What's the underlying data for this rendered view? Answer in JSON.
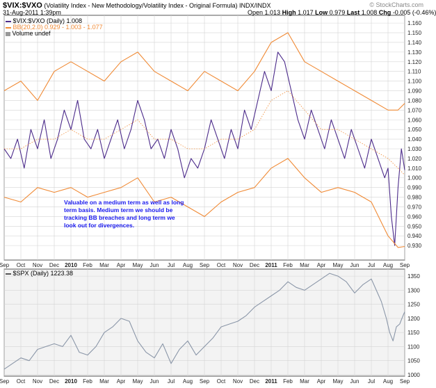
{
  "header": {
    "symbol": "$VIX:$VXO",
    "description": "(Volatility Index - New Methodology/Volatility Index - Original Formula)",
    "exchange": "INDX/INDX",
    "date": "31-Aug-2011 1:39pm",
    "watermark": "© StockCharts.com",
    "open_label": "Open",
    "open": "1.013",
    "high_label": "High",
    "high": "1.017",
    "low_label": "Low",
    "low": "0.979",
    "last_label": "Last",
    "last": "1.008",
    "chg_label": "Chg",
    "chg": "-0.005 (-0.46%)"
  },
  "legend": {
    "ratio": "$VIX:$VXO (Daily) 1.008",
    "bb": "BB(20,2.0) 0.929 - 1.003 - 1.077",
    "volume": "Volume undef"
  },
  "annotation": "Valuable on a medium term as well as long term basis. Medium term we should be tracking BB breaches and long term we look out for divergences.",
  "colors": {
    "ratio": "#4b2a8a",
    "bands": "#f08a35",
    "spx": "#8a96a8",
    "panel_bg": "#f3f3f3",
    "grid": "#d4d4d4",
    "annotation": "#1a1aee"
  },
  "chart_data": [
    {
      "type": "line",
      "title": "$VIX:$VXO (Daily) with Bollinger Bands BB(20,2.0)",
      "ylim": [
        0.915,
        1.168
      ],
      "y_ticks": [
        "0.930",
        "0.940",
        "0.950",
        "0.960",
        "0.970",
        "0.980",
        "0.990",
        "1.000",
        "1.010",
        "1.020",
        "1.030",
        "1.040",
        "1.050",
        "1.060",
        "1.070",
        "1.080",
        "1.090",
        "1.100",
        "1.110",
        "1.120",
        "1.130",
        "1.140",
        "1.150",
        "1.160"
      ],
      "x_labels": [
        "Sep",
        "Oct",
        "Nov",
        "Dec",
        "2010",
        "Feb",
        "Mar",
        "Apr",
        "May",
        "Jun",
        "Jul",
        "Aug",
        "Sep",
        "Oct",
        "Nov",
        "Dec",
        "2011",
        "Feb",
        "Mar",
        "Apr",
        "May",
        "Jun",
        "Jul",
        "Aug",
        "Sep"
      ],
      "x_months": [
        0,
        1,
        2,
        3,
        4,
        5,
        6,
        7,
        8,
        9,
        10,
        11,
        12,
        13,
        14,
        15,
        16,
        17,
        18,
        19,
        20,
        21,
        22,
        23,
        24
      ],
      "x_month_max": 24.0,
      "series": [
        {
          "name": "$VIX:$VXO",
          "x": [
            0,
            0.4,
            0.8,
            1.2,
            1.6,
            2,
            2.4,
            2.8,
            3.2,
            3.6,
            4,
            4.4,
            4.8,
            5.2,
            5.6,
            6,
            6.4,
            6.8,
            7.2,
            7.6,
            8,
            8.4,
            8.8,
            9.2,
            9.6,
            10,
            10.4,
            10.8,
            11.2,
            11.6,
            12,
            12.4,
            12.8,
            13.2,
            13.6,
            14,
            14.4,
            14.8,
            15.2,
            15.6,
            16,
            16.4,
            16.8,
            17.2,
            17.6,
            18,
            18.4,
            18.8,
            19.2,
            19.6,
            20,
            20.4,
            20.8,
            21.2,
            21.6,
            22,
            22.4,
            22.8,
            23.0,
            23.2,
            23.4,
            23.6,
            23.8,
            24.0
          ],
          "values": [
            1.03,
            1.02,
            1.04,
            1.01,
            1.05,
            1.03,
            1.06,
            1.02,
            1.04,
            1.07,
            1.05,
            1.08,
            1.04,
            1.03,
            1.05,
            1.02,
            1.04,
            1.06,
            1.03,
            1.05,
            1.08,
            1.06,
            1.03,
            1.04,
            1.02,
            1.05,
            1.03,
            1.0,
            1.02,
            1.01,
            1.03,
            1.06,
            1.04,
            1.02,
            1.05,
            1.03,
            1.07,
            1.05,
            1.08,
            1.11,
            1.09,
            1.13,
            1.12,
            1.09,
            1.06,
            1.04,
            1.07,
            1.05,
            1.03,
            1.06,
            1.04,
            1.02,
            1.05,
            1.03,
            1.01,
            1.04,
            1.02,
            1.0,
            1.01,
            0.96,
            0.93,
            0.99,
            1.03,
            1.008
          ]
        },
        {
          "name": "BB Upper",
          "x": [
            0,
            1,
            2,
            3,
            4,
            5,
            6,
            7,
            8,
            9,
            10,
            11,
            12,
            13,
            14,
            15,
            16,
            17,
            18,
            19,
            20,
            21,
            22,
            23,
            23.6,
            24.0
          ],
          "values": [
            1.09,
            1.1,
            1.08,
            1.11,
            1.12,
            1.11,
            1.1,
            1.12,
            1.13,
            1.11,
            1.1,
            1.09,
            1.11,
            1.1,
            1.09,
            1.11,
            1.14,
            1.15,
            1.12,
            1.11,
            1.1,
            1.09,
            1.08,
            1.07,
            1.07,
            1.077
          ]
        },
        {
          "name": "BB Middle",
          "x": [
            0,
            1,
            2,
            3,
            4,
            5,
            6,
            7,
            8,
            9,
            10,
            11,
            12,
            13,
            14,
            15,
            16,
            17,
            18,
            19,
            20,
            21,
            22,
            23,
            23.6,
            24.0
          ],
          "values": [
            1.03,
            1.03,
            1.04,
            1.04,
            1.05,
            1.04,
            1.04,
            1.05,
            1.06,
            1.04,
            1.04,
            1.03,
            1.03,
            1.04,
            1.04,
            1.05,
            1.08,
            1.09,
            1.07,
            1.05,
            1.05,
            1.04,
            1.03,
            1.02,
            1.01,
            1.003
          ]
        },
        {
          "name": "BB Lower",
          "x": [
            0,
            1,
            2,
            3,
            4,
            5,
            6,
            7,
            8,
            9,
            10,
            11,
            12,
            13,
            14,
            15,
            16,
            17,
            18,
            19,
            20,
            21,
            22,
            23,
            23.6,
            24.0
          ],
          "values": [
            0.98,
            0.975,
            0.99,
            0.985,
            0.99,
            0.98,
            0.985,
            0.99,
            1.0,
            0.975,
            0.98,
            0.97,
            0.96,
            0.975,
            0.985,
            0.99,
            1.01,
            1.02,
            1.0,
            0.985,
            0.99,
            0.985,
            0.975,
            0.94,
            0.928,
            0.929
          ]
        }
      ]
    },
    {
      "type": "line",
      "title": "$SPX (Daily) 1223.38",
      "ylim": [
        995,
        1375
      ],
      "y_ticks": [
        "1000",
        "1050",
        "1100",
        "1150",
        "1200",
        "1250",
        "1300",
        "1350"
      ],
      "x_labels": [
        "Sep",
        "Oct",
        "Nov",
        "Dec",
        "2010",
        "Feb",
        "Mar",
        "Apr",
        "May",
        "Jun",
        "Jul",
        "Aug",
        "Sep",
        "Oct",
        "Nov",
        "Dec",
        "2011",
        "Feb",
        "Mar",
        "Apr",
        "May",
        "Jun",
        "Jul",
        "Aug",
        "Sep"
      ],
      "x_months": [
        0,
        1,
        2,
        3,
        4,
        5,
        6,
        7,
        8,
        9,
        10,
        11,
        12,
        13,
        14,
        15,
        16,
        17,
        18,
        19,
        20,
        21,
        22,
        23,
        24
      ],
      "x_month_max": 24.0,
      "series": [
        {
          "name": "$SPX",
          "x": [
            0,
            0.5,
            1,
            1.5,
            2,
            2.5,
            3,
            3.5,
            4,
            4.5,
            5,
            5.5,
            6,
            6.5,
            7,
            7.5,
            8,
            8.5,
            9,
            9.5,
            10,
            10.5,
            11,
            11.5,
            12,
            12.5,
            13,
            13.5,
            14,
            14.5,
            15,
            15.5,
            16,
            16.5,
            17,
            17.5,
            18,
            18.5,
            19,
            19.5,
            20,
            20.5,
            21,
            21.5,
            22,
            22.3,
            22.6,
            22.9,
            23.1,
            23.3,
            23.5,
            23.7,
            23.9,
            24.0
          ],
          "values": [
            1020,
            1040,
            1060,
            1050,
            1090,
            1100,
            1110,
            1100,
            1140,
            1080,
            1070,
            1100,
            1150,
            1170,
            1200,
            1190,
            1120,
            1080,
            1060,
            1110,
            1040,
            1090,
            1120,
            1070,
            1100,
            1130,
            1170,
            1180,
            1190,
            1210,
            1240,
            1260,
            1280,
            1300,
            1330,
            1310,
            1300,
            1320,
            1340,
            1360,
            1350,
            1330,
            1290,
            1320,
            1340,
            1300,
            1260,
            1200,
            1150,
            1120,
            1170,
            1180,
            1210,
            1223.38
          ]
        }
      ]
    }
  ]
}
